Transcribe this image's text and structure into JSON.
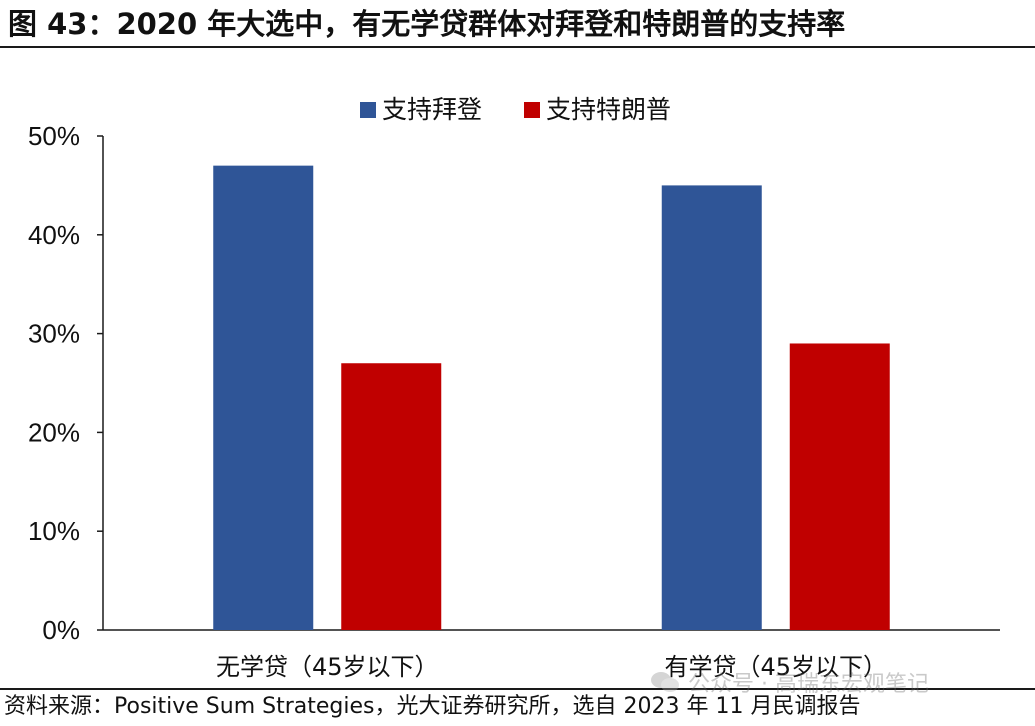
{
  "title": "图 43：2020 年大选中，有无学贷群体对拜登和特朗普的支持率",
  "source": "资料来源：Positive Sum Strategies，光大证券研究所，选自 2023 年 11 月民调报告",
  "watermark": "公众号 · 高瑞东宏观笔记",
  "chart_data": {
    "type": "bar",
    "categories": [
      "无学贷（45岁以下）",
      "有学贷（45岁以下）"
    ],
    "series": [
      {
        "name": "支持拜登",
        "values": [
          47,
          45
        ],
        "color": "#2f5597"
      },
      {
        "name": "支持特朗普",
        "values": [
          27,
          29
        ],
        "color": "#c00000"
      }
    ],
    "ylim": [
      0,
      50
    ],
    "yticks": [
      0,
      10,
      20,
      30,
      40,
      50
    ],
    "ytick_labels": [
      "0%",
      "10%",
      "20%",
      "30%",
      "40%",
      "50%"
    ],
    "legend_position": "top-center",
    "grid": false
  }
}
